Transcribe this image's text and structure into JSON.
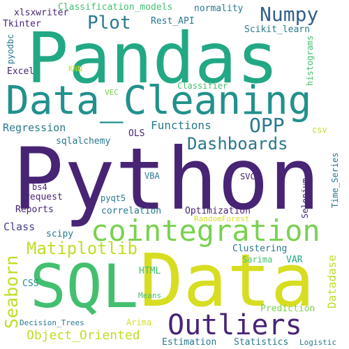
{
  "words": [
    "Pandas",
    "Python",
    "Data_Cleaning",
    "SQL",
    "Data",
    "cointegration",
    "Outliers",
    "Numpy",
    "Plot",
    "OPP",
    "Dashboards",
    "Matiplotlib",
    "Seaborn",
    "Object_Oriented",
    "Regression",
    "Functions",
    "xlsxwriter",
    "Classification_models",
    "normality",
    "Tkinter",
    "pyodbc",
    "Rest_API",
    "Scikit_learn",
    "histograms",
    "Excel",
    "KNN",
    "Classifier",
    "VEC",
    "csv",
    "OLS",
    "sqlalchemy",
    "Time_Series",
    "VBA",
    "SVC",
    "Selenium",
    "bs4",
    "request",
    "pyqt5",
    "Reports",
    "correlation",
    "Optimization",
    "RandomForest",
    "Class",
    "scipy",
    "Clustering",
    "Sarima",
    "Datadase",
    "HTML",
    "VAR",
    "CSS",
    "Means",
    "Prediction",
    "Decision_Trees",
    "Arima",
    "Estimation",
    "Statistics",
    "Logistic"
  ]
}
